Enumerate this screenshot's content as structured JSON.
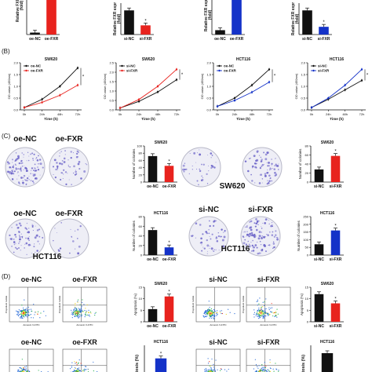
{
  "panel_labels": [
    "(B)",
    "(C)",
    "(D)"
  ],
  "colors": {
    "black": "#111111",
    "red": "#e8231e",
    "blue": "#1432c8",
    "dish": "#6a62c8"
  },
  "dish_groups": [
    {
      "labels": [
        "oe-NC",
        "oe-FXR"
      ],
      "cell_line": "SW620",
      "density": [
        0.75,
        0.35
      ]
    },
    {
      "labels": [
        "si-NC",
        "si-FXR"
      ],
      "cell_line": "SW620",
      "density": [
        0.25,
        0.5
      ]
    },
    {
      "labels": [
        "oe-NC",
        "oe-FXR"
      ],
      "cell_line": "HCT116",
      "density": [
        0.45,
        0.12
      ]
    },
    {
      "labels": [
        "si-NC",
        "si-FXR"
      ],
      "cell_line": "HCT116",
      "density": [
        0.35,
        0.7
      ]
    }
  ],
  "flow_panels": [
    {
      "labels": [
        "oe-NC",
        "oe-FXR"
      ],
      "ylabel": "Propidium Iodide",
      "xlabel": "Annexin V-FITC"
    },
    {
      "labels": [
        "si-NC",
        "si-FXR"
      ],
      "ylabel": "Propidium Iodide",
      "xlabel": "Annexin V-FITC"
    },
    {
      "labels": [
        "oe-NC",
        "oe-FXR"
      ]
    },
    {
      "labels": [
        "si-NC",
        "si-FXR"
      ]
    }
  ],
  "chart_data": [
    {
      "id": "a1",
      "type": "bar",
      "ylabel": "Relative FXR expr",
      "ylabel2": "(fold)",
      "categories": [
        "oe-NC",
        "oe-FXR"
      ],
      "values": [
        0.4,
        9.5
      ],
      "ylim": [
        0,
        12
      ],
      "colors": [
        "#111111",
        "#e8231e"
      ],
      "star": [
        false,
        true
      ]
    },
    {
      "id": "a2",
      "type": "bar",
      "ylabel": "Relative FXR expr",
      "ylabel2": "(fold)",
      "categories": [
        "si-NC",
        "si-FXR"
      ],
      "values": [
        1.0,
        0.38
      ],
      "ylim": [
        0,
        1.3
      ],
      "colors": [
        "#111111",
        "#e8231e"
      ],
      "star": [
        false,
        true
      ]
    },
    {
      "id": "a3",
      "type": "bar",
      "ylabel": "Relative FXR expr",
      "ylabel2": "(fold)",
      "categories": [
        "oe-NC",
        "oe-FXR"
      ],
      "values": [
        1.0,
        9.0
      ],
      "ylim": [
        0,
        9
      ],
      "colors": [
        "#111111",
        "#1432c8"
      ],
      "star": [
        false,
        false
      ]
    },
    {
      "id": "a4",
      "type": "bar",
      "ylabel": "Relative FXR expr",
      "ylabel2": "(fold)",
      "categories": [
        "si-NC",
        "si-FXR"
      ],
      "values": [
        1.0,
        0.32
      ],
      "ylim": [
        0,
        1.3
      ],
      "colors": [
        "#111111",
        "#1432c8"
      ],
      "star": [
        false,
        true
      ]
    },
    {
      "id": "b1",
      "type": "line",
      "title": "SW620",
      "ylabel": "OD value (450nm)",
      "xlabel": "Time (h)",
      "x": [
        "0h",
        "24h",
        "48h",
        "72h"
      ],
      "ylim": [
        0,
        2.0
      ],
      "yticks": [
        0,
        0.5,
        1.0,
        1.5,
        2.0
      ],
      "series": [
        {
          "name": "oe-NC",
          "values": [
            0.1,
            0.45,
            1.0,
            1.78
          ],
          "color": "#111111"
        },
        {
          "name": "oe-FXR",
          "values": [
            0.1,
            0.32,
            0.62,
            1.05
          ],
          "color": "#e8231e"
        }
      ]
    },
    {
      "id": "b2",
      "type": "line",
      "title": "SW620",
      "ylabel": "OD value (450nm)",
      "xlabel": "Time (h)",
      "x": [
        "0h",
        "24h",
        "48h",
        "72h"
      ],
      "ylim": [
        0,
        2.5
      ],
      "yticks": [
        0,
        0.5,
        1.0,
        1.5,
        2.0,
        2.5
      ],
      "series": [
        {
          "name": "si-NC",
          "values": [
            0.1,
            0.45,
            0.95,
            1.6
          ],
          "color": "#111111"
        },
        {
          "name": "si-FXR",
          "values": [
            0.1,
            0.55,
            1.25,
            2.15
          ],
          "color": "#e8231e"
        }
      ]
    },
    {
      "id": "b3",
      "type": "line",
      "title": "HCT116",
      "ylabel": "OD value (450nm)",
      "xlabel": "Time (h)",
      "x": [
        "0h",
        "24h",
        "48h",
        "72h"
      ],
      "ylim": [
        0,
        2.0
      ],
      "yticks": [
        0,
        0.5,
        1.0,
        1.5,
        2.0
      ],
      "series": [
        {
          "name": "oe-NC",
          "values": [
            0.15,
            0.5,
            1.05,
            1.72
          ],
          "color": "#111111"
        },
        {
          "name": "oe-FXR",
          "values": [
            0.15,
            0.4,
            0.75,
            1.18
          ],
          "color": "#1432c8"
        }
      ]
    },
    {
      "id": "b4",
      "type": "line",
      "title": "HCT116",
      "ylabel": "OD value (450nm)",
      "xlabel": "Time (h)",
      "x": [
        "0h",
        "24h",
        "48h",
        "72h"
      ],
      "ylim": [
        0,
        2.0
      ],
      "yticks": [
        0,
        0.5,
        1.0,
        1.5,
        2.0
      ],
      "series": [
        {
          "name": "si-NC",
          "values": [
            0.1,
            0.45,
            0.85,
            1.25
          ],
          "color": "#111111"
        },
        {
          "name": "si-FXR",
          "values": [
            0.1,
            0.5,
            1.05,
            1.72
          ],
          "color": "#1432c8"
        }
      ]
    },
    {
      "id": "c1",
      "type": "bar",
      "title": "SW620",
      "ylabel": "Number of colonies",
      "categories": [
        "oe-NC",
        "oe-FXR"
      ],
      "values": [
        72,
        45
      ],
      "ylim": [
        0,
        100
      ],
      "yticks": [
        0,
        20,
        40,
        60,
        80,
        100
      ],
      "colors": [
        "#111111",
        "#e8231e"
      ],
      "star": [
        false,
        true
      ]
    },
    {
      "id": "c2",
      "type": "bar",
      "title": "SW620",
      "ylabel": "Number of colonies",
      "categories": [
        "si-NC",
        "si-FXR"
      ],
      "values": [
        28,
        58
      ],
      "ylim": [
        0,
        80
      ],
      "yticks": [
        0,
        20,
        40,
        60,
        80
      ],
      "colors": [
        "#111111",
        "#e8231e"
      ],
      "star": [
        false,
        true
      ]
    },
    {
      "id": "c3",
      "type": "bar",
      "title": "HCT116",
      "ylabel": "Number of colonies",
      "categories": [
        "oe-NC",
        "oe-FXR"
      ],
      "values": [
        52,
        16
      ],
      "ylim": [
        0,
        80
      ],
      "yticks": [
        0,
        20,
        40,
        60,
        80
      ],
      "colors": [
        "#111111",
        "#1432c8"
      ],
      "star": [
        false,
        true
      ]
    },
    {
      "id": "c4",
      "type": "bar",
      "title": "HCT116",
      "ylabel": "Number of colonies",
      "categories": [
        "si-NC",
        "si-FXR"
      ],
      "values": [
        70,
        160
      ],
      "ylim": [
        0,
        250
      ],
      "yticks": [
        0,
        50,
        100,
        150,
        200,
        250
      ],
      "colors": [
        "#111111",
        "#1432c8"
      ],
      "star": [
        false,
        true
      ]
    },
    {
      "id": "d1",
      "type": "bar",
      "title": "SW620",
      "ylabel": "Apoptosis (%)",
      "categories": [
        "oe-NC",
        "oe-FXR"
      ],
      "values": [
        5.5,
        11
      ],
      "ylim": [
        0,
        15
      ],
      "yticks": [
        0,
        5,
        10,
        15
      ],
      "colors": [
        "#111111",
        "#e8231e"
      ],
      "star": [
        false,
        true
      ]
    },
    {
      "id": "d2",
      "type": "bar",
      "title": "SW620",
      "ylabel": "Apoptosis (%)",
      "categories": [
        "si-NC",
        "si-FXR"
      ],
      "values": [
        12,
        8
      ],
      "ylim": [
        0,
        15
      ],
      "yticks": [
        0,
        5,
        10,
        15
      ],
      "colors": [
        "#111111",
        "#e8231e"
      ],
      "star": [
        false,
        true
      ]
    },
    {
      "id": "d3",
      "type": "bar",
      "title": "HCT116",
      "ylabel": "ptosis (%)",
      "values": [
        10
      ],
      "ylim": [
        0,
        15
      ],
      "colors": [
        "#1432c8"
      ],
      "star": [
        true
      ]
    },
    {
      "id": "d4",
      "type": "bar",
      "title": "HCT116",
      "ylabel": "ptosis (%)",
      "values": [
        12
      ],
      "ylim": [
        0,
        15
      ],
      "colors": [
        "#111111"
      ],
      "star": [
        false
      ]
    }
  ]
}
